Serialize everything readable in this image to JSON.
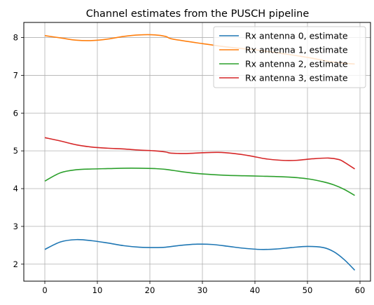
{
  "chart_data": {
    "type": "line",
    "title": "Channel estimates from the PUSCH pipeline",
    "xlabel": "",
    "ylabel": "",
    "xlim": [
      -4,
      62
    ],
    "ylim": [
      1.55,
      8.4
    ],
    "xticks": [
      0,
      10,
      20,
      30,
      40,
      50,
      60
    ],
    "yticks": [
      2,
      3,
      4,
      5,
      6,
      7,
      8
    ],
    "grid": true,
    "legend": "top-right",
    "series": [
      {
        "name": "Rx antenna 0, estimate",
        "color": "#1f77b4",
        "x": [
          0,
          3,
          6,
          9,
          12,
          15,
          18,
          21,
          23,
          26,
          29,
          32,
          35,
          38,
          41,
          44,
          47,
          50,
          53,
          55,
          57,
          59
        ],
        "y": [
          2.39,
          2.59,
          2.65,
          2.62,
          2.56,
          2.49,
          2.45,
          2.44,
          2.45,
          2.5,
          2.53,
          2.52,
          2.47,
          2.42,
          2.39,
          2.4,
          2.44,
          2.47,
          2.44,
          2.33,
          2.12,
          1.84
        ]
      },
      {
        "name": "Rx antenna 1, estimate",
        "color": "#ff7f0e",
        "x": [
          0,
          3,
          6,
          9,
          12,
          15,
          18,
          21,
          23,
          24,
          27,
          30,
          33,
          36,
          39,
          42,
          45,
          48,
          51,
          54,
          57,
          59
        ],
        "y": [
          8.05,
          7.99,
          7.93,
          7.92,
          7.96,
          8.03,
          8.07,
          8.07,
          8.03,
          7.97,
          7.9,
          7.84,
          7.78,
          7.73,
          7.69,
          7.64,
          7.58,
          7.52,
          7.45,
          7.37,
          7.32,
          7.3
        ]
      },
      {
        "name": "Rx antenna 2, estimate",
        "color": "#2ca02c",
        "x": [
          0,
          3,
          6,
          9,
          12,
          15,
          18,
          21,
          23,
          26,
          29,
          32,
          35,
          38,
          41,
          44,
          47,
          50,
          53,
          55,
          57,
          59
        ],
        "y": [
          4.2,
          4.42,
          4.5,
          4.52,
          4.53,
          4.54,
          4.54,
          4.53,
          4.51,
          4.45,
          4.4,
          4.37,
          4.35,
          4.34,
          4.33,
          4.32,
          4.3,
          4.26,
          4.18,
          4.1,
          3.98,
          3.82
        ]
      },
      {
        "name": "Rx antenna 3, estimate",
        "color": "#d62728",
        "x": [
          0,
          3,
          6,
          9,
          12,
          15,
          18,
          21,
          23,
          24,
          27,
          30,
          33,
          36,
          39,
          42,
          45,
          48,
          51,
          54,
          56,
          57,
          59
        ],
        "y": [
          5.35,
          5.26,
          5.16,
          5.1,
          5.07,
          5.05,
          5.02,
          5.0,
          4.97,
          4.94,
          4.93,
          4.95,
          4.96,
          4.93,
          4.87,
          4.79,
          4.75,
          4.75,
          4.79,
          4.81,
          4.77,
          4.7,
          4.52
        ]
      }
    ]
  }
}
